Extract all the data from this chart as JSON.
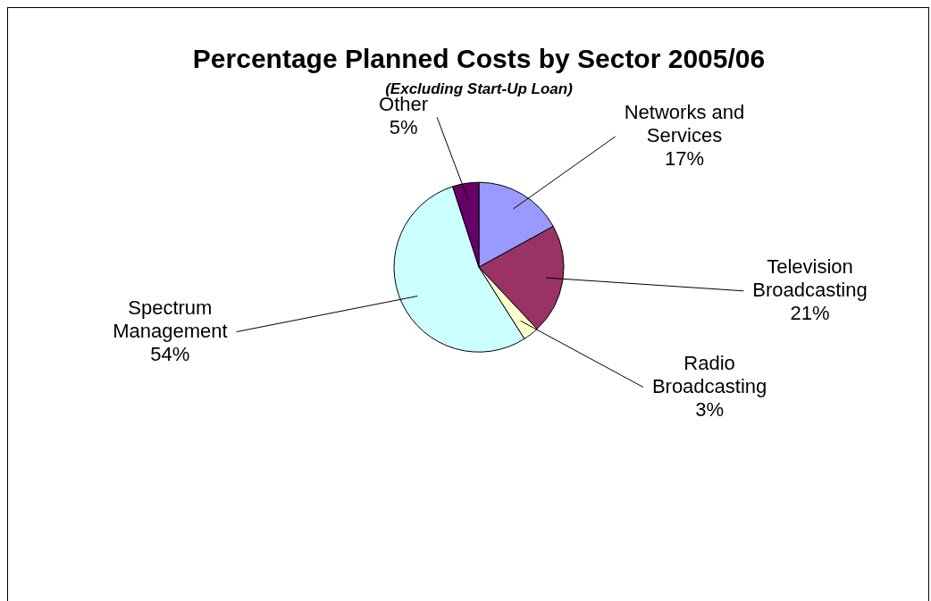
{
  "chart_data": {
    "type": "pie",
    "title": "Percentage Planned Costs by Sector 2005/06",
    "subtitle": "(Excluding Start-Up Loan)",
    "categories": [
      "Networks and Services",
      "Television Broadcasting",
      "Radio Broadcasting",
      "Spectrum Management",
      "Other"
    ],
    "values": [
      17,
      21,
      3,
      54,
      5
    ],
    "colors": [
      "#9999ff",
      "#993366",
      "#ffffcc",
      "#ccffff",
      "#660066"
    ],
    "value_labels": [
      "17%",
      "21%",
      "3%",
      "54%",
      "5%"
    ],
    "legend": false
  }
}
